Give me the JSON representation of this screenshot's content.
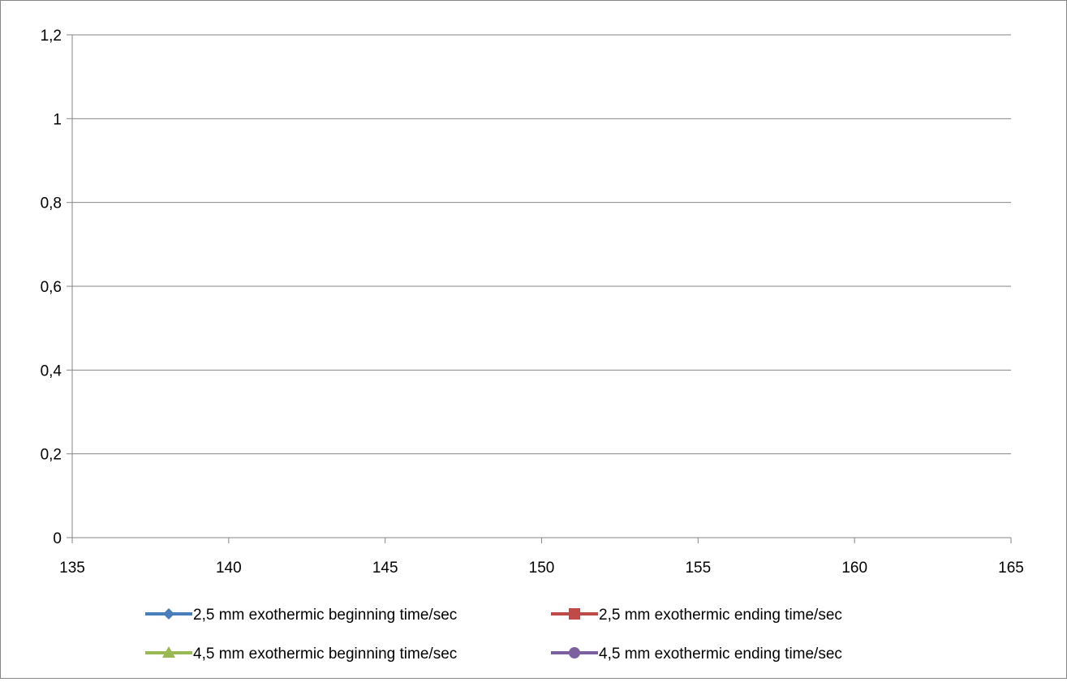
{
  "chart_data": {
    "type": "scatter",
    "title": "",
    "xlabel": "",
    "ylabel": "",
    "xlim": [
      135,
      165
    ],
    "ylim": [
      0,
      1.2
    ],
    "x_ticks": [
      {
        "value": 135,
        "label": "135"
      },
      {
        "value": 140,
        "label": "140"
      },
      {
        "value": 145,
        "label": "145"
      },
      {
        "value": 150,
        "label": "150"
      },
      {
        "value": 155,
        "label": "155"
      },
      {
        "value": 160,
        "label": "160"
      },
      {
        "value": 165,
        "label": "165"
      }
    ],
    "y_ticks": [
      {
        "value": 0,
        "label": "0"
      },
      {
        "value": 0.2,
        "label": "0,2"
      },
      {
        "value": 0.4,
        "label": "0,4"
      },
      {
        "value": 0.6,
        "label": "0,6"
      },
      {
        "value": 0.8,
        "label": "0,8"
      },
      {
        "value": 1.0,
        "label": "1"
      },
      {
        "value": 1.2,
        "label": "1,2"
      }
    ],
    "grid": "horizontal",
    "legend_position": "bottom",
    "series": [
      {
        "name": "2,5 mm exothermic beginning time/sec",
        "color": "#4a7ebb",
        "marker": "diamond",
        "points": []
      },
      {
        "name": "2,5 mm exothermic ending time/sec",
        "color": "#be4b48",
        "marker": "square",
        "points": []
      },
      {
        "name": "4,5 mm exothermic beginning time/sec",
        "color": "#98b954",
        "marker": "triangle",
        "points": []
      },
      {
        "name": "4,5 mm exothermic ending time/sec",
        "color": "#7d60a0",
        "marker": "circle",
        "points": []
      }
    ]
  }
}
